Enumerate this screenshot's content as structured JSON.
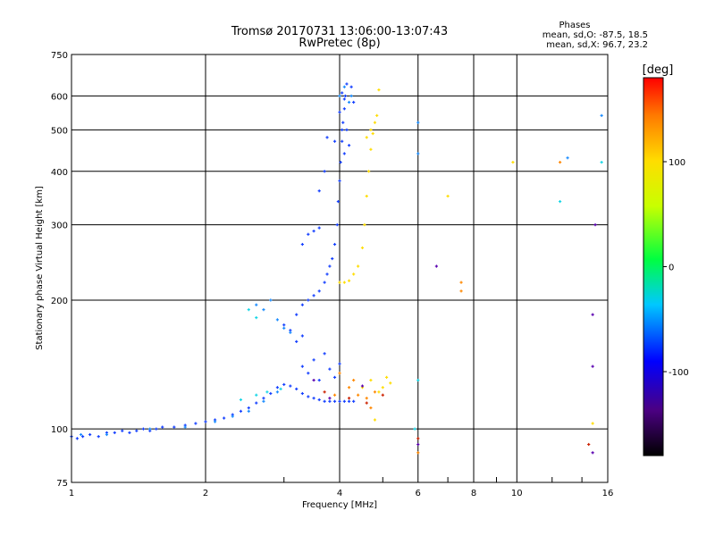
{
  "chart_data": {
    "type": "scatter",
    "title": "Tromsø 20170731 13:06:00-13:07:43",
    "subtitle": "RwPretec (8p)",
    "legend_title": "Phases",
    "legend_line1": "mean, sd,O: -87.5, 18.5",
    "legend_line2": "mean, sd,X:  96.7, 23.2",
    "xlabel": "Frequency [MHz]",
    "ylabel": "Stationary phase Virtual Height [km]",
    "xscale": "log",
    "yscale": "log",
    "xlim": [
      1,
      16
    ],
    "ylim": [
      75,
      750
    ],
    "xticks": [
      1,
      2,
      4,
      6,
      8,
      10,
      16
    ],
    "xtick_labels": [
      "1",
      "2",
      "4",
      "6",
      "8",
      "10",
      "16"
    ],
    "yticks": [
      75,
      100,
      200,
      300,
      400,
      500,
      600,
      750
    ],
    "ytick_labels": [
      "75",
      "100",
      "200",
      "300",
      "400",
      "500",
      "600",
      "750"
    ],
    "grid": true,
    "colorbar": {
      "label": "[deg]",
      "range": [
        -180,
        180
      ],
      "ticks": [
        100,
        0,
        -100
      ],
      "tick_labels": [
        "100",
        "0",
        "-100"
      ]
    },
    "series": [
      {
        "color": "#1540ff",
        "phase": -100,
        "points": [
          [
            1.0,
            96
          ],
          [
            1.03,
            95
          ],
          [
            1.06,
            96
          ],
          [
            1.1,
            97
          ],
          [
            1.15,
            96
          ],
          [
            1.2,
            98
          ],
          [
            1.25,
            98
          ],
          [
            1.3,
            99
          ],
          [
            1.35,
            98
          ],
          [
            1.4,
            99
          ],
          [
            1.45,
            100
          ],
          [
            1.5,
            99
          ],
          [
            1.55,
            100
          ],
          [
            1.6,
            101
          ],
          [
            1.7,
            101
          ],
          [
            1.8,
            102
          ],
          [
            1.9,
            103
          ],
          [
            2.0,
            104
          ],
          [
            2.1,
            105
          ],
          [
            2.2,
            106
          ],
          [
            2.3,
            108
          ],
          [
            2.4,
            110
          ],
          [
            2.5,
            112
          ],
          [
            2.6,
            115
          ],
          [
            2.7,
            118
          ],
          [
            2.8,
            121
          ],
          [
            2.9,
            125
          ],
          [
            3.0,
            127
          ],
          [
            3.1,
            126
          ],
          [
            3.2,
            124
          ],
          [
            3.3,
            121
          ],
          [
            3.4,
            119
          ],
          [
            3.5,
            118
          ],
          [
            3.6,
            117
          ],
          [
            3.7,
            116
          ],
          [
            3.8,
            116
          ],
          [
            3.9,
            116
          ],
          [
            4.0,
            116
          ],
          [
            4.1,
            116
          ],
          [
            4.2,
            116
          ],
          [
            4.3,
            116
          ],
          [
            3.3,
            140
          ],
          [
            3.4,
            135
          ],
          [
            3.5,
            145
          ],
          [
            3.6,
            130
          ],
          [
            3.7,
            150
          ],
          [
            3.8,
            138
          ],
          [
            3.9,
            132
          ],
          [
            4.0,
            142
          ],
          [
            3.2,
            160
          ],
          [
            3.3,
            165
          ],
          [
            3.1,
            170
          ],
          [
            3.0,
            175
          ],
          [
            3.2,
            185
          ],
          [
            3.3,
            195
          ],
          [
            3.4,
            200
          ],
          [
            3.5,
            205
          ],
          [
            3.6,
            210
          ],
          [
            3.7,
            220
          ],
          [
            3.75,
            230
          ],
          [
            3.8,
            240
          ],
          [
            3.85,
            250
          ],
          [
            3.9,
            270
          ],
          [
            3.95,
            300
          ],
          [
            3.97,
            340
          ],
          [
            4.0,
            380
          ],
          [
            4.02,
            420
          ],
          [
            4.05,
            470
          ],
          [
            4.07,
            520
          ],
          [
            4.1,
            560
          ],
          [
            4.12,
            600
          ],
          [
            4.15,
            640
          ],
          [
            3.6,
            360
          ],
          [
            3.7,
            400
          ],
          [
            3.75,
            480
          ],
          [
            3.5,
            290
          ],
          [
            3.6,
            295
          ],
          [
            3.4,
            285
          ],
          [
            3.3,
            270
          ],
          [
            4.0,
            550
          ],
          [
            4.05,
            610
          ],
          [
            4.1,
            590
          ],
          [
            4.15,
            500
          ],
          [
            4.2,
            460
          ],
          [
            4.25,
            630
          ],
          [
            4.1,
            440
          ],
          [
            4.05,
            500
          ],
          [
            3.9,
            470
          ],
          [
            4.3,
            580
          ]
        ]
      },
      {
        "color": "#1a8cff",
        "phase": -70,
        "points": [
          [
            1.05,
            97
          ],
          [
            1.2,
            97
          ],
          [
            1.5,
            100
          ],
          [
            1.8,
            101
          ],
          [
            2.1,
            104
          ],
          [
            2.3,
            107
          ],
          [
            2.5,
            110
          ],
          [
            2.7,
            116
          ],
          [
            2.9,
            122
          ],
          [
            2.6,
            195
          ],
          [
            2.7,
            190
          ],
          [
            2.8,
            200
          ],
          [
            2.9,
            180
          ],
          [
            3.0,
            172
          ],
          [
            3.1,
            168
          ],
          [
            4.0,
            600
          ],
          [
            4.1,
            630
          ],
          [
            4.2,
            580
          ],
          [
            4.25,
            600
          ],
          [
            6.0,
            520
          ],
          [
            6.0,
            440
          ],
          [
            15.5,
            540
          ],
          [
            13.0,
            430
          ]
        ]
      },
      {
        "color": "#17d6e6",
        "phase": -40,
        "points": [
          [
            2.4,
            117
          ],
          [
            2.6,
            120
          ],
          [
            2.75,
            122
          ],
          [
            2.95,
            124
          ],
          [
            2.5,
            190
          ],
          [
            2.6,
            182
          ],
          [
            6.0,
            130
          ],
          [
            5.9,
            100
          ],
          [
            12.5,
            340
          ],
          [
            15.5,
            420
          ]
        ]
      },
      {
        "color": "#ffdd00",
        "phase": 100,
        "points": [
          [
            4.0,
            220
          ],
          [
            4.1,
            220
          ],
          [
            4.2,
            222
          ],
          [
            4.3,
            230
          ],
          [
            4.4,
            240
          ],
          [
            4.5,
            265
          ],
          [
            4.55,
            300
          ],
          [
            4.6,
            350
          ],
          [
            4.65,
            400
          ],
          [
            4.7,
            450
          ],
          [
            4.75,
            490
          ],
          [
            4.8,
            520
          ],
          [
            4.85,
            540
          ],
          [
            4.9,
            620
          ],
          [
            4.6,
            480
          ],
          [
            4.7,
            500
          ],
          [
            5.1,
            132
          ],
          [
            5.2,
            128
          ],
          [
            5.0,
            125
          ],
          [
            4.9,
            122
          ],
          [
            4.7,
            130
          ],
          [
            4.5,
            125
          ],
          [
            7.0,
            350
          ],
          [
            9.8,
            420
          ],
          [
            14.8,
            103
          ],
          [
            4.8,
            105
          ]
        ]
      },
      {
        "color": "#ff8800",
        "phase": 140,
        "points": [
          [
            4.2,
            125
          ],
          [
            4.4,
            120
          ],
          [
            4.6,
            118
          ],
          [
            4.8,
            122
          ],
          [
            4.3,
            130
          ],
          [
            4.0,
            135
          ],
          [
            3.9,
            120
          ],
          [
            4.7,
            112
          ],
          [
            6.0,
            88
          ],
          [
            7.5,
            210
          ],
          [
            7.5,
            220
          ],
          [
            12.5,
            420
          ]
        ]
      },
      {
        "color": "#cc2200",
        "phase": 170,
        "points": [
          [
            3.7,
            122
          ],
          [
            4.2,
            118
          ],
          [
            4.6,
            115
          ],
          [
            5.0,
            120
          ],
          [
            6.0,
            95
          ],
          [
            14.5,
            92
          ]
        ]
      },
      {
        "color": "#5a00b0",
        "phase": -140,
        "points": [
          [
            3.5,
            130
          ],
          [
            3.8,
            118
          ],
          [
            4.5,
            126
          ],
          [
            6.0,
            92
          ],
          [
            6.6,
            240
          ],
          [
            14.8,
            185
          ],
          [
            14.8,
            140
          ],
          [
            15.0,
            300
          ],
          [
            14.8,
            88
          ]
        ]
      }
    ]
  }
}
